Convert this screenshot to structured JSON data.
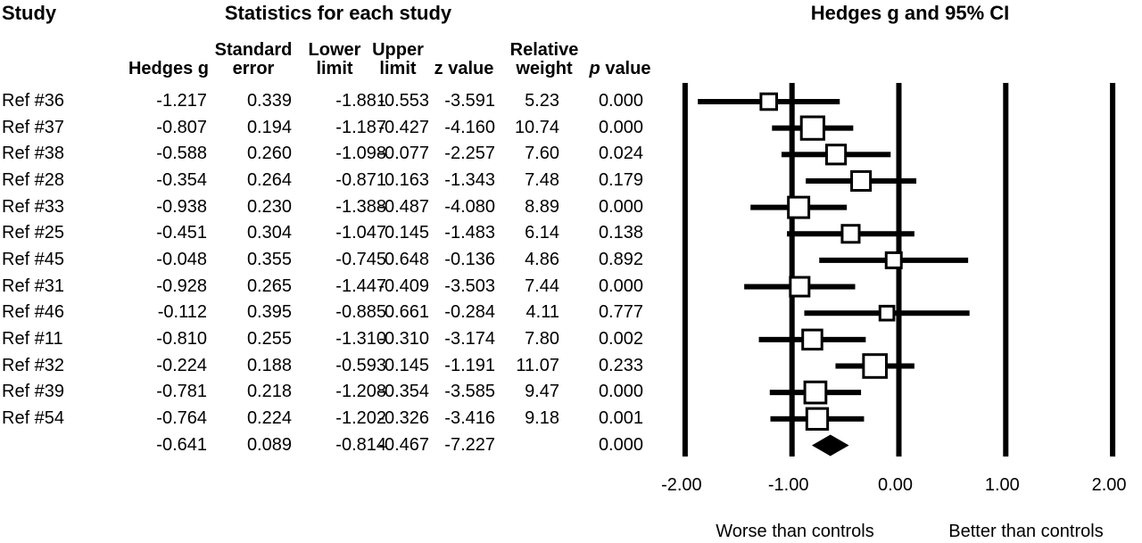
{
  "titles": {
    "study": "Study",
    "statistics": "Statistics for each study"
  },
  "table": {
    "columns": [
      {
        "key": "hedges_g",
        "lines": [
          "Hedges g"
        ]
      },
      {
        "key": "se",
        "lines": [
          "Standard",
          "error"
        ]
      },
      {
        "key": "lower",
        "lines": [
          "Lower",
          "limit"
        ]
      },
      {
        "key": "upper",
        "lines": [
          "Upper",
          "limit"
        ]
      },
      {
        "key": "z",
        "lines": [
          "z value"
        ]
      },
      {
        "key": "weight",
        "lines": [
          "Relative",
          "weight"
        ]
      },
      {
        "key": "p",
        "lines": [
          "p value"
        ],
        "italic_lead": true
      }
    ]
  },
  "chart_data": {
    "type": "forest",
    "title": "Hedges g and 95% CI",
    "xlabel": "Hedges g",
    "xlim": [
      -2,
      2
    ],
    "x_ticks": [
      -2,
      -1,
      0,
      1,
      2
    ],
    "x_tick_labels": [
      "-2.00",
      "-1.00",
      "0.00",
      "1.00",
      "2.00"
    ],
    "axis_caption_left": "Worse than controls",
    "axis_caption_right": "Better than controls",
    "axis_color": "#000000",
    "marker_fill": "#ffffff",
    "marker_stroke": "#000000",
    "summary_color": "#000000",
    "grid": true,
    "studies": [
      {
        "label": "Ref #36",
        "hedges_g": "-1.217",
        "se": "0.339",
        "lower": "-1.881",
        "upper": "-0.553",
        "z": "-3.591",
        "weight": "5.23",
        "p": "0.000"
      },
      {
        "label": "Ref #37",
        "hedges_g": "-0.807",
        "se": "0.194",
        "lower": "-1.187",
        "upper": "-0.427",
        "z": "-4.160",
        "weight": "10.74",
        "p": "0.000"
      },
      {
        "label": "Ref #38",
        "hedges_g": "-0.588",
        "se": "0.260",
        "lower": "-1.098",
        "upper": "-0.077",
        "z": "-2.257",
        "weight": "7.60",
        "p": "0.024"
      },
      {
        "label": "Ref #28",
        "hedges_g": "-0.354",
        "se": "0.264",
        "lower": "-0.871",
        "upper": "0.163",
        "z": "-1.343",
        "weight": "7.48",
        "p": "0.179"
      },
      {
        "label": "Ref #33",
        "hedges_g": "-0.938",
        "se": "0.230",
        "lower": "-1.388",
        "upper": "-0.487",
        "z": "-4.080",
        "weight": "8.89",
        "p": "0.000"
      },
      {
        "label": "Ref #25",
        "hedges_g": "-0.451",
        "se": "0.304",
        "lower": "-1.047",
        "upper": "0.145",
        "z": "-1.483",
        "weight": "6.14",
        "p": "0.138"
      },
      {
        "label": "Ref #45",
        "hedges_g": "-0.048",
        "se": "0.355",
        "lower": "-0.745",
        "upper": "0.648",
        "z": "-0.136",
        "weight": "4.86",
        "p": "0.892"
      },
      {
        "label": "Ref #31",
        "hedges_g": "-0.928",
        "se": "0.265",
        "lower": "-1.447",
        "upper": "-0.409",
        "z": "-3.503",
        "weight": "7.44",
        "p": "0.000"
      },
      {
        "label": "Ref #46",
        "hedges_g": "-0.112",
        "se": "0.395",
        "lower": "-0.885",
        "upper": "0.661",
        "z": "-0.284",
        "weight": "4.11",
        "p": "0.777"
      },
      {
        "label": "Ref #11",
        "hedges_g": "-0.810",
        "se": "0.255",
        "lower": "-1.310",
        "upper": "-0.310",
        "z": "-3.174",
        "weight": "7.80",
        "p": "0.002"
      },
      {
        "label": "Ref #32",
        "hedges_g": "-0.224",
        "se": "0.188",
        "lower": "-0.593",
        "upper": "0.145",
        "z": "-1.191",
        "weight": "11.07",
        "p": "0.233"
      },
      {
        "label": "Ref #39",
        "hedges_g": "-0.781",
        "se": "0.218",
        "lower": "-1.208",
        "upper": "-0.354",
        "z": "-3.585",
        "weight": "9.47",
        "p": "0.000"
      },
      {
        "label": "Ref #54",
        "hedges_g": "-0.764",
        "se": "0.224",
        "lower": "-1.202",
        "upper": "-0.326",
        "z": "-3.416",
        "weight": "9.18",
        "p": "0.001"
      }
    ],
    "summary": {
      "label": "",
      "hedges_g": "-0.641",
      "se": "0.089",
      "lower": "-0.814",
      "upper": "-0.467",
      "z": "-7.227",
      "weight": "",
      "p": "0.000"
    }
  }
}
